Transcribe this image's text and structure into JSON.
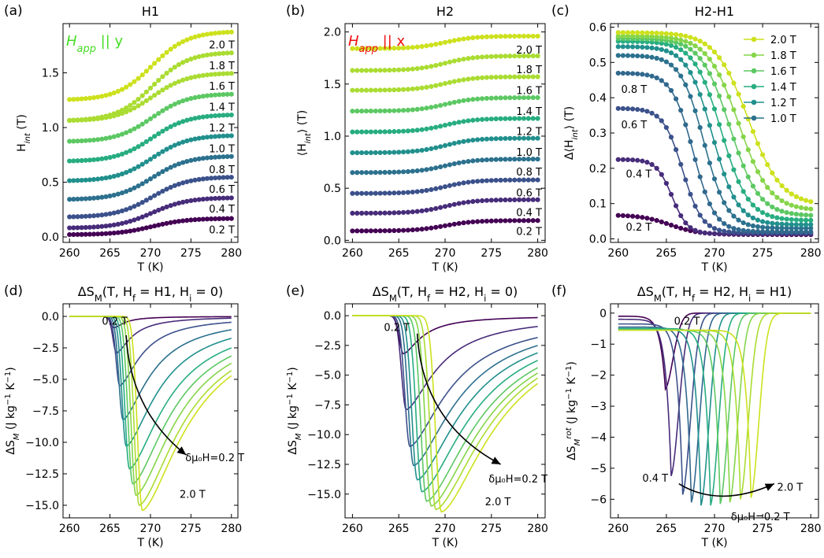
{
  "chart_data": [
    {
      "panel": "(a)",
      "title": "H1",
      "type": "line",
      "xlabel": "T (K)",
      "ylabel": "H_int (T)",
      "field_label": {
        "main": "H",
        "sub": "app",
        "tail": "|| y",
        "color": "#44dd22"
      },
      "xlim": [
        259.2,
        280.8
      ],
      "ylim": [
        -0.05,
        1.95
      ],
      "xticks": [
        260,
        265,
        270,
        275,
        280
      ],
      "yticks": [
        0.0,
        0.5,
        1.0,
        1.5
      ],
      "ytick_labels": [
        "0.0",
        "0.5",
        "1.0",
        "1.5"
      ],
      "curve": {
        "kind": "sigmoid",
        "center": 270.2,
        "width": 2.2
      },
      "markers": true,
      "series": [
        {
          "name": "0.2 T",
          "low": 0.02,
          "high": 0.17,
          "label_y": 0.07,
          "color": "#440154"
        },
        {
          "name": "0.4 T",
          "low": 0.08,
          "high": 0.36,
          "label_y": 0.26,
          "color": "#472c7a"
        },
        {
          "name": "0.6 T",
          "low": 0.18,
          "high": 0.55,
          "label_y": 0.44,
          "color": "#3b518b"
        },
        {
          "name": "0.8 T",
          "low": 0.34,
          "high": 0.74,
          "label_y": 0.62,
          "color": "#2c718e"
        },
        {
          "name": "1.0 T",
          "low": 0.51,
          "high": 0.93,
          "label_y": 0.81,
          "color": "#21908d"
        },
        {
          "name": "1.2 T",
          "low": 0.69,
          "high": 1.12,
          "label_y": 1.0,
          "color": "#27ad81"
        },
        {
          "name": "1.4 T",
          "low": 0.87,
          "high": 1.31,
          "label_y": 1.19,
          "color": "#5cc863"
        },
        {
          "name": "1.6 T",
          "low": 1.06,
          "high": 1.5,
          "label_y": 1.38,
          "color": "#aadc32"
        },
        {
          "name": "1.8 T",
          "low": 1.06,
          "high": 1.69,
          "label_y": 1.57,
          "color": "#aadc32"
        },
        {
          "name": "2.0 T",
          "low": 1.25,
          "high": 1.88,
          "label_y": 1.76,
          "color": "#cde11d"
        }
      ]
    },
    {
      "panel": "(b)",
      "title": "H2",
      "type": "line",
      "xlabel": "T (K)",
      "ylabel": "⟨H_int⟩ (T)",
      "field_label": {
        "main": "H",
        "sub": "app",
        "tail": "|| x",
        "color": "#ee1111"
      },
      "xlim": [
        259.2,
        280.8
      ],
      "ylim": [
        -0.02,
        2.08
      ],
      "xticks": [
        260,
        265,
        270,
        275,
        280
      ],
      "yticks": [
        0.0,
        0.5,
        1.0,
        1.5,
        2.0
      ],
      "ytick_labels": [
        "0.0",
        "0.5",
        "1.0",
        "1.5",
        "2.0"
      ],
      "curve": {
        "kind": "sigmoid",
        "center": 270.0,
        "width": 1.6
      },
      "markers": true,
      "series": [
        {
          "name": "0.2 T",
          "low": 0.09,
          "high": 0.19,
          "label_y": 0.09,
          "color": "#440154"
        },
        {
          "name": "0.4 T",
          "low": 0.26,
          "high": 0.39,
          "label_y": 0.27,
          "color": "#472c7a"
        },
        {
          "name": "0.6 T",
          "low": 0.45,
          "high": 0.58,
          "label_y": 0.46,
          "color": "#3b518b"
        },
        {
          "name": "0.8 T",
          "low": 0.65,
          "high": 0.78,
          "label_y": 0.66,
          "color": "#2c718e"
        },
        {
          "name": "1.0 T",
          "low": 0.84,
          "high": 0.98,
          "label_y": 0.85,
          "color": "#21908d"
        },
        {
          "name": "1.2 T",
          "low": 1.04,
          "high": 1.17,
          "label_y": 1.05,
          "color": "#27ad81"
        },
        {
          "name": "1.4 T",
          "low": 1.24,
          "high": 1.37,
          "label_y": 1.24,
          "color": "#5cc863"
        },
        {
          "name": "1.6 T",
          "low": 1.44,
          "high": 1.57,
          "label_y": 1.44,
          "color": "#aadc32"
        },
        {
          "name": "1.8 T",
          "low": 1.63,
          "high": 1.77,
          "label_y": 1.64,
          "color": "#aadc32"
        },
        {
          "name": "2.0 T",
          "low": 1.84,
          "high": 1.96,
          "label_y": 1.83,
          "color": "#cde11d"
        }
      ]
    },
    {
      "panel": "(c)",
      "title": "H2-H1",
      "type": "line",
      "xlabel": "T (K)",
      "ylabel": "Δ⟨H_int⟩ (T)",
      "xlim": [
        259.2,
        280.8
      ],
      "ylim": [
        -0.01,
        0.61
      ],
      "xticks": [
        260,
        265,
        270,
        275,
        280
      ],
      "yticks": [
        0.0,
        0.1,
        0.2,
        0.3,
        0.4,
        0.5,
        0.6
      ],
      "ytick_labels": [
        "0.0",
        "0.1",
        "0.2",
        "0.3",
        "0.4",
        "0.5",
        "0.6"
      ],
      "curve": {
        "kind": "drop"
      },
      "markers": true,
      "legend": {
        "placement": "top-right",
        "entries": [
          "2.0 T",
          "1.8 T",
          "1.6 T",
          "1.4 T",
          "1.2 T",
          "1.0 T"
        ],
        "colors": [
          "#cde11d",
          "#86d549",
          "#5cc863",
          "#27ad81",
          "#21908d",
          "#2c718e"
        ]
      },
      "annotations": [
        {
          "text": "0.8 T",
          "x": 260.3,
          "y": 0.425
        },
        {
          "text": "0.6 T",
          "x": 260.3,
          "y": 0.325
        },
        {
          "text": "0.4 T",
          "x": 260.8,
          "y": 0.185
        },
        {
          "text": "0.2 T",
          "x": 260.8,
          "y": 0.035
        }
      ],
      "series": [
        {
          "name": "0.2 T",
          "plateau": 0.068,
          "center": 265.4,
          "tail": 0.012,
          "width": 1.5,
          "color": "#440154"
        },
        {
          "name": "0.4 T",
          "plateau": 0.225,
          "center": 265.6,
          "tail": 0.014,
          "width": 0.8,
          "color": "#472c7a"
        },
        {
          "name": "0.6 T",
          "plateau": 0.37,
          "center": 266.7,
          "tail": 0.017,
          "width": 1.0,
          "color": "#3b518b"
        },
        {
          "name": "0.8 T",
          "plateau": 0.47,
          "center": 267.8,
          "tail": 0.02,
          "width": 1.1,
          "color": "#31688e"
        },
        {
          "name": "1.0 T",
          "plateau": 0.52,
          "center": 268.9,
          "tail": 0.03,
          "width": 1.2,
          "color": "#2c718e"
        },
        {
          "name": "1.2 T",
          "plateau": 0.545,
          "center": 269.8,
          "tail": 0.04,
          "width": 1.3,
          "color": "#21908d"
        },
        {
          "name": "1.4 T",
          "plateau": 0.56,
          "center": 270.7,
          "tail": 0.052,
          "width": 1.4,
          "color": "#27ad81"
        },
        {
          "name": "1.6 T",
          "plateau": 0.568,
          "center": 271.6,
          "tail": 0.065,
          "width": 1.5,
          "color": "#5cc863"
        },
        {
          "name": "1.8 T",
          "plateau": 0.575,
          "center": 272.5,
          "tail": 0.08,
          "width": 1.6,
          "color": "#86d549"
        },
        {
          "name": "2.0 T",
          "plateau": 0.585,
          "center": 273.5,
          "tail": 0.095,
          "width": 1.7,
          "color": "#cde11d"
        }
      ]
    },
    {
      "panel": "(d)",
      "title": "ΔS_M(T, H_f = H1, H_i = 0)",
      "type": "line",
      "xlabel": "T (K)",
      "ylabel": "ΔS_M (J kg⁻¹ K⁻¹)",
      "xlim": [
        259.2,
        280.8
      ],
      "ylim": [
        -16.0,
        1.0
      ],
      "xticks": [
        260,
        265,
        270,
        275,
        280
      ],
      "yticks": [
        0.0,
        -2.5,
        -5.0,
        -7.5,
        -10.0,
        -12.5,
        -15.0
      ],
      "ytick_labels": [
        "0.0",
        "−2.5",
        "−5.0",
        "−7.5",
        "−10.0",
        "−12.5",
        "−15.0"
      ],
      "curve": {
        "kind": "well"
      },
      "markers": false,
      "annotations": [
        {
          "text": "0.2 T",
          "x": 264.0,
          "y": -0.35
        },
        {
          "text": "δμ₀H=0.2 T",
          "x": 274.3,
          "y": -11.2
        },
        {
          "text": "2.0 T",
          "x": 273.6,
          "y": -14.1
        }
      ],
      "arrow": {
        "from": [
          267.0,
          -1.5
        ],
        "ctrl": [
          267.5,
          -7.5
        ],
        "to": [
          274.4,
          -11.0
        ]
      },
      "series": [
        {
          "name": "0.2 T",
          "min_t": 265.5,
          "min_v": -0.9,
          "color": "#440154"
        },
        {
          "name": "0.4 T",
          "min_t": 265.8,
          "min_v": -2.9,
          "color": "#472c7a"
        },
        {
          "name": "0.6 T",
          "min_t": 266.2,
          "min_v": -5.5,
          "color": "#3b518b"
        },
        {
          "name": "0.8 T",
          "min_t": 266.6,
          "min_v": -8.2,
          "color": "#2c718e"
        },
        {
          "name": "1.0 T",
          "min_t": 267.0,
          "min_v": -10.3,
          "color": "#21908d"
        },
        {
          "name": "1.2 T",
          "min_t": 267.4,
          "min_v": -12.1,
          "color": "#27ad81"
        },
        {
          "name": "1.4 T",
          "min_t": 267.8,
          "min_v": -13.3,
          "color": "#5cc863"
        },
        {
          "name": "1.6 T",
          "min_t": 268.2,
          "min_v": -14.2,
          "color": "#86d549"
        },
        {
          "name": "1.8 T",
          "min_t": 268.6,
          "min_v": -15.0,
          "color": "#aadc32"
        },
        {
          "name": "2.0 T",
          "min_t": 269.0,
          "min_v": -15.4,
          "color": "#cde11d"
        }
      ]
    },
    {
      "panel": "(e)",
      "title": "ΔS_M(T, H_f = H2, H_i = 0)",
      "type": "line",
      "xlabel": "T (K)",
      "ylabel": "ΔS_M (J kg⁻¹ K⁻¹)",
      "xlim": [
        259.2,
        280.8
      ],
      "ylim": [
        -17.0,
        1.0
      ],
      "xticks": [
        260,
        265,
        270,
        275,
        280
      ],
      "yticks": [
        0.0,
        -2.5,
        -5.0,
        -7.5,
        -10.0,
        -12.5,
        -15.0
      ],
      "ytick_labels": [
        "0.0",
        "−2.5",
        "−5.0",
        "−7.5",
        "−10.0",
        "−12.5",
        "−15.0"
      ],
      "curve": {
        "kind": "well"
      },
      "markers": false,
      "annotations": [
        {
          "text": "0.2 T",
          "x": 263.4,
          "y": -0.95
        },
        {
          "text": "δμ₀H=0.2 T",
          "x": 274.7,
          "y": -13.7
        },
        {
          "text": "2.0 T",
          "x": 274.3,
          "y": -15.6
        }
      ],
      "arrow": {
        "from": [
          267.0,
          -1.5
        ],
        "ctrl": [
          267.5,
          -9.0
        ],
        "to": [
          276.0,
          -12.5
        ]
      },
      "series": [
        {
          "name": "0.2 T",
          "min_t": 265.5,
          "min_v": -3.2,
          "color": "#440154"
        },
        {
          "name": "0.4 T",
          "min_t": 265.8,
          "min_v": -7.9,
          "color": "#472c7a"
        },
        {
          "name": "0.6 T",
          "min_t": 266.2,
          "min_v": -11.0,
          "color": "#3b518b"
        },
        {
          "name": "0.8 T",
          "min_t": 266.6,
          "min_v": -12.6,
          "color": "#2c718e"
        },
        {
          "name": "1.0 T",
          "min_t": 267.0,
          "min_v": -13.8,
          "color": "#21908d"
        },
        {
          "name": "1.2 T",
          "min_t": 267.5,
          "min_v": -14.8,
          "color": "#27ad81"
        },
        {
          "name": "1.4 T",
          "min_t": 268.0,
          "min_v": -15.6,
          "color": "#5cc863"
        },
        {
          "name": "1.6 T",
          "min_t": 268.5,
          "min_v": -16.0,
          "color": "#86d549"
        },
        {
          "name": "1.8 T",
          "min_t": 269.0,
          "min_v": -16.3,
          "color": "#aadc32"
        },
        {
          "name": "2.0 T",
          "min_t": 269.6,
          "min_v": -16.5,
          "color": "#cde11d"
        }
      ]
    },
    {
      "panel": "(f)",
      "title": "ΔS_M(T, H_f = H2, H_i = H1)",
      "type": "line",
      "xlabel": "T (K)",
      "ylabel": "ΔS_M^rot (J kg⁻¹ K⁻¹)",
      "xlim": [
        259.2,
        280.8
      ],
      "ylim": [
        -6.6,
        0.3
      ],
      "xticks": [
        260,
        265,
        270,
        275,
        280
      ],
      "yticks": [
        0,
        -1,
        -2,
        -3,
        -4,
        -5,
        -6
      ],
      "ytick_labels": [
        "0",
        "−1",
        "−2",
        "−3",
        "−4",
        "−5",
        "−6"
      ],
      "curve": {
        "kind": "spike"
      },
      "markers": false,
      "annotations": [
        {
          "text": "0.2 T",
          "x": 265.8,
          "y": -0.25
        },
        {
          "text": "0.4 T",
          "x": 262.5,
          "y": -5.3
        },
        {
          "text": "2.0 T",
          "x": 276.5,
          "y": -5.6
        },
        {
          "text": "δμ₀H=0.2 T",
          "x": 271.7,
          "y": -6.55
        }
      ],
      "arrow": {
        "from": [
          266.3,
          -5.5
        ],
        "ctrl": [
          270.5,
          -6.3
        ],
        "to": [
          276.2,
          -5.5
        ]
      },
      "series": [
        {
          "name": "0.2 T",
          "min_t": 264.9,
          "min_v": -2.45,
          "start": -0.1,
          "color": "#440154"
        },
        {
          "name": "0.4 T",
          "min_t": 265.5,
          "min_v": -5.25,
          "start": -0.2,
          "color": "#472c7a"
        },
        {
          "name": "0.6 T",
          "min_t": 266.7,
          "min_v": -5.85,
          "start": -0.35,
          "color": "#3b518b"
        },
        {
          "name": "0.8 T",
          "min_t": 267.6,
          "min_v": -6.1,
          "start": -0.45,
          "color": "#31688e"
        },
        {
          "name": "1.0 T",
          "min_t": 268.6,
          "min_v": -6.2,
          "start": -0.5,
          "color": "#21908d"
        },
        {
          "name": "1.2 T",
          "min_t": 269.6,
          "min_v": -6.2,
          "start": -0.5,
          "color": "#27ad81"
        },
        {
          "name": "1.4 T",
          "min_t": 270.6,
          "min_v": -6.15,
          "start": -0.55,
          "color": "#5cc863"
        },
        {
          "name": "1.6 T",
          "min_t": 271.6,
          "min_v": -6.1,
          "start": -0.55,
          "color": "#86d549"
        },
        {
          "name": "1.8 T",
          "min_t": 272.7,
          "min_v": -6.0,
          "start": -0.55,
          "color": "#aadc32"
        },
        {
          "name": "2.0 T",
          "min_t": 273.8,
          "min_v": -5.95,
          "start": -0.55,
          "color": "#cde11d"
        }
      ]
    }
  ]
}
